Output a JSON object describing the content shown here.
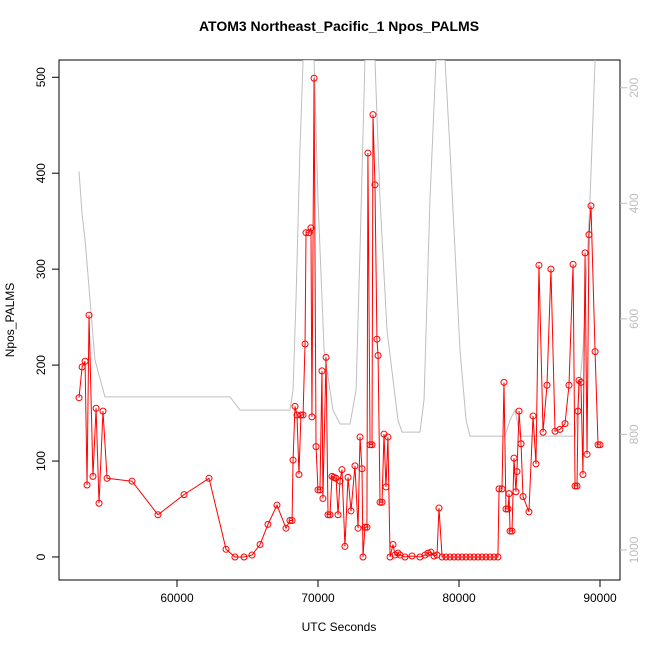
{
  "chart_data": {
    "type": "line",
    "title": "ATOM3 Northeast_Pacific_1 Npos_PALMS",
    "x_label": "UTC Seconds",
    "y_label": "Npos_PALMS",
    "xlim": [
      51631,
      91418
    ],
    "ylim": [
      -24,
      518
    ],
    "y2lim": [
      1052,
      152
    ],
    "xticks": [
      60000,
      70000,
      80000,
      90000
    ],
    "yticks": [
      0,
      100,
      200,
      300,
      400,
      500
    ],
    "y2ticks": [
      200,
      400,
      600,
      800,
      1000
    ],
    "y2_color": "#bebebe",
    "series": [
      {
        "color": "#ff0000",
        "marker": "circle",
        "x": [
          53050,
          53270,
          53480,
          53620,
          53760,
          54040,
          54260,
          54470,
          54750,
          55040,
          56810,
          58650,
          60500,
          62270,
          63480,
          64110,
          64750,
          65320,
          65890,
          66450,
          67090,
          67730,
          68010,
          68160,
          68230,
          68370,
          68510,
          68650,
          68790,
          68940,
          69080,
          69150,
          69360,
          69500,
          69570,
          69720,
          69860,
          70000,
          70140,
          70280,
          70350,
          70570,
          70710,
          70850,
          70990,
          71130,
          71280,
          71420,
          71560,
          71700,
          71910,
          72130,
          72340,
          72620,
          72840,
          72980,
          73120,
          73190,
          73330,
          73470,
          73540,
          73690,
          73830,
          73900,
          74040,
          74180,
          74260,
          74400,
          74540,
          74680,
          74820,
          74960,
          75110,
          75320,
          75460,
          75670,
          75820,
          76170,
          76670,
          77230,
          77590,
          77800,
          78010,
          78230,
          78440,
          78580,
          78800,
          79080,
          79360,
          79650,
          79930,
          80210,
          80500,
          80780,
          81060,
          81350,
          81630,
          81910,
          82200,
          82480,
          82760,
          82840,
          83050,
          83190,
          83330,
          83480,
          83550,
          83620,
          83760,
          83900,
          84040,
          84110,
          84260,
          84400,
          84540,
          84960,
          85250,
          85460,
          85670,
          85960,
          86240,
          86520,
          86810,
          87160,
          87520,
          87800,
          88090,
          88230,
          88370,
          88440,
          88510,
          88650,
          88790,
          88940,
          89080,
          89220,
          89360,
          89650,
          89860,
          90000
        ],
        "values": [
          166,
          198,
          204,
          75,
          252,
          84,
          155,
          56,
          152,
          82,
          79,
          44,
          65,
          82,
          8,
          0,
          0,
          2,
          13,
          34,
          54,
          30,
          38,
          38,
          101,
          157,
          148,
          86,
          148,
          148,
          222,
          338,
          338,
          343,
          146,
          499,
          115,
          70,
          70,
          194,
          61,
          208,
          44,
          44,
          84,
          83,
          82,
          44,
          79,
          91,
          11,
          83,
          48,
          95,
          30,
          125,
          92,
          0,
          31,
          31,
          421,
          117,
          117,
          461,
          388,
          227,
          210,
          57,
          57,
          128,
          73,
          125,
          0,
          13,
          2,
          4,
          2,
          0,
          1,
          0,
          2,
          4,
          5,
          1,
          2,
          51,
          0,
          0,
          0,
          0,
          0,
          0,
          0,
          0,
          0,
          0,
          0,
          0,
          0,
          0,
          0,
          71,
          71,
          182,
          50,
          50,
          66,
          27,
          27,
          103,
          68,
          89,
          152,
          118,
          63,
          47,
          147,
          97,
          304,
          130,
          179,
          300,
          131,
          133,
          139,
          179,
          305,
          74,
          74,
          152,
          184,
          182,
          86,
          317,
          107,
          336,
          366,
          214,
          117,
          117
        ]
      },
      {
        "color": "#bebebe",
        "axis": "y2",
        "x": [
          53050,
          53270,
          53480,
          53830,
          54180,
          54890,
          63760,
          64470,
          68010,
          68230,
          68440,
          68720,
          68940,
          69720,
          70000,
          70430,
          71060,
          71560,
          72270,
          72700,
          72980,
          73330,
          74040,
          74400,
          74890,
          75670,
          75960,
          77230,
          77520,
          77940,
          78370,
          79010,
          79360,
          80070,
          80500,
          80780,
          83260,
          83620,
          83970,
          84330,
          88230,
          88790,
          89290,
          89650
        ],
        "values": [
          345,
          420,
          463,
          567,
          671,
          735,
          735,
          758,
          758,
          723,
          567,
          307,
          152,
          152,
          394,
          654,
          758,
          782,
          782,
          723,
          481,
          152,
          152,
          394,
          619,
          775,
          796,
          796,
          740,
          394,
          152,
          152,
          307,
          654,
          775,
          803,
          803,
          775,
          758,
          803,
          803,
          654,
          394,
          152
        ]
      }
    ]
  }
}
